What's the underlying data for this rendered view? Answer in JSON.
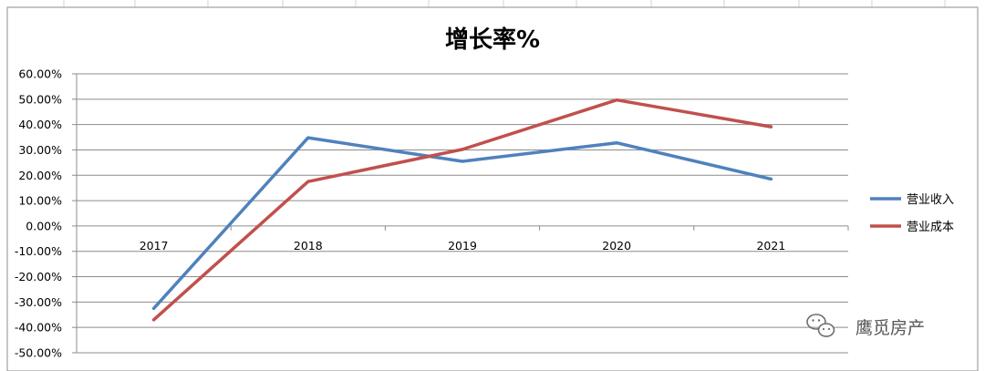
{
  "chart_data": {
    "type": "line",
    "title": "增长率%",
    "xlabel": "",
    "ylabel": "",
    "categories": [
      "2017",
      "2018",
      "2019",
      "2020",
      "2021"
    ],
    "series": [
      {
        "name": "营业收入",
        "color": "#4F81BD",
        "values": [
          -0.325,
          0.348,
          0.255,
          0.328,
          0.185
        ]
      },
      {
        "name": "营业成本",
        "color": "#C0504D",
        "values": [
          -0.37,
          0.175,
          0.302,
          0.497,
          0.391
        ]
      }
    ],
    "ylim": [
      -0.5,
      0.6
    ],
    "ytick_step": 0.1,
    "yticks": [
      "60.00%",
      "50.00%",
      "40.00%",
      "30.00%",
      "20.00%",
      "10.00%",
      "0.00%",
      "-10.00%",
      "-20.00%",
      "-30.00%",
      "-40.00%",
      "-50.00%"
    ],
    "grid": true,
    "legend_position": "right"
  },
  "watermark": {
    "icon": "wechat-icon",
    "text": "鹰觅房产"
  }
}
